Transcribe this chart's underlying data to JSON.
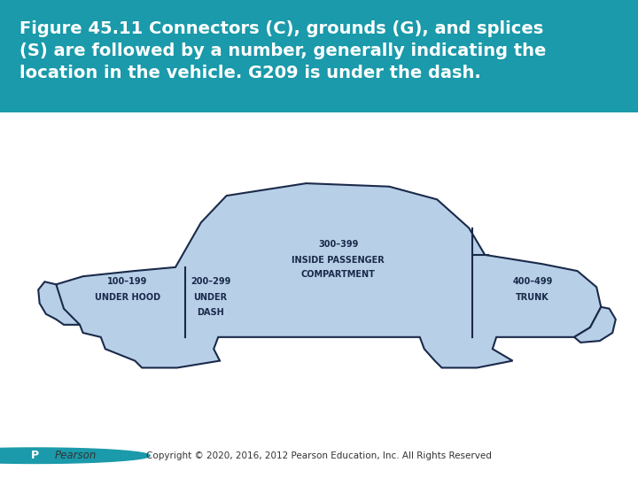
{
  "title_text": "Figure 45.11 Connectors (C), grounds (G), and splices\n(S) are followed by a number, generally indicating the\nlocation in the vehicle. G209 is under the dash.",
  "title_bg_color": "#1a9aaa",
  "title_text_color": "#ffffff",
  "title_fontsize": 14,
  "body_bg_color": "#ffffff",
  "car_fill_color": "#b8cfe8",
  "car_edge_color": "#1a2a4a",
  "label_color": "#1a2a4a",
  "label_fontsize": 7,
  "copyright_text": "Copyright © 2020, 2016, 2012 Pearson Education, Inc. All Rights Reserved",
  "pearson_text": "Pearson",
  "pearson_logo_color": "#1a9aaa",
  "footer_fontsize": 8
}
